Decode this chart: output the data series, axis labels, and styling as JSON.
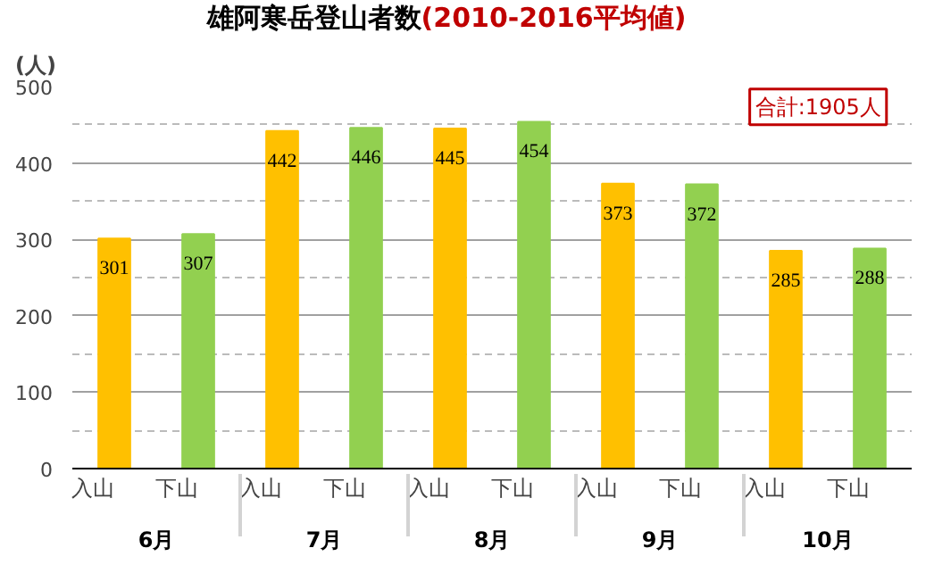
{
  "chart_data": {
    "type": "bar",
    "title": "雄阿寒岳登山者数",
    "subtitle": "(2010-2016平均値)",
    "ylabel": "(人)",
    "categories": [
      "6月",
      "7月",
      "8月",
      "9月",
      "10月"
    ],
    "series": [
      {
        "name": "入山",
        "color": "#ffc000",
        "values": [
          301,
          442,
          445,
          373,
          285
        ]
      },
      {
        "name": "下山",
        "color": "#92d050",
        "values": [
          307,
          446,
          454,
          372,
          288
        ]
      }
    ],
    "ylim": [
      0,
      500
    ],
    "yticks": [
      0,
      100,
      200,
      300,
      400,
      500
    ],
    "grid": true,
    "data_labels": true,
    "legend": false,
    "annotations": [
      "合計:1905人"
    ]
  }
}
